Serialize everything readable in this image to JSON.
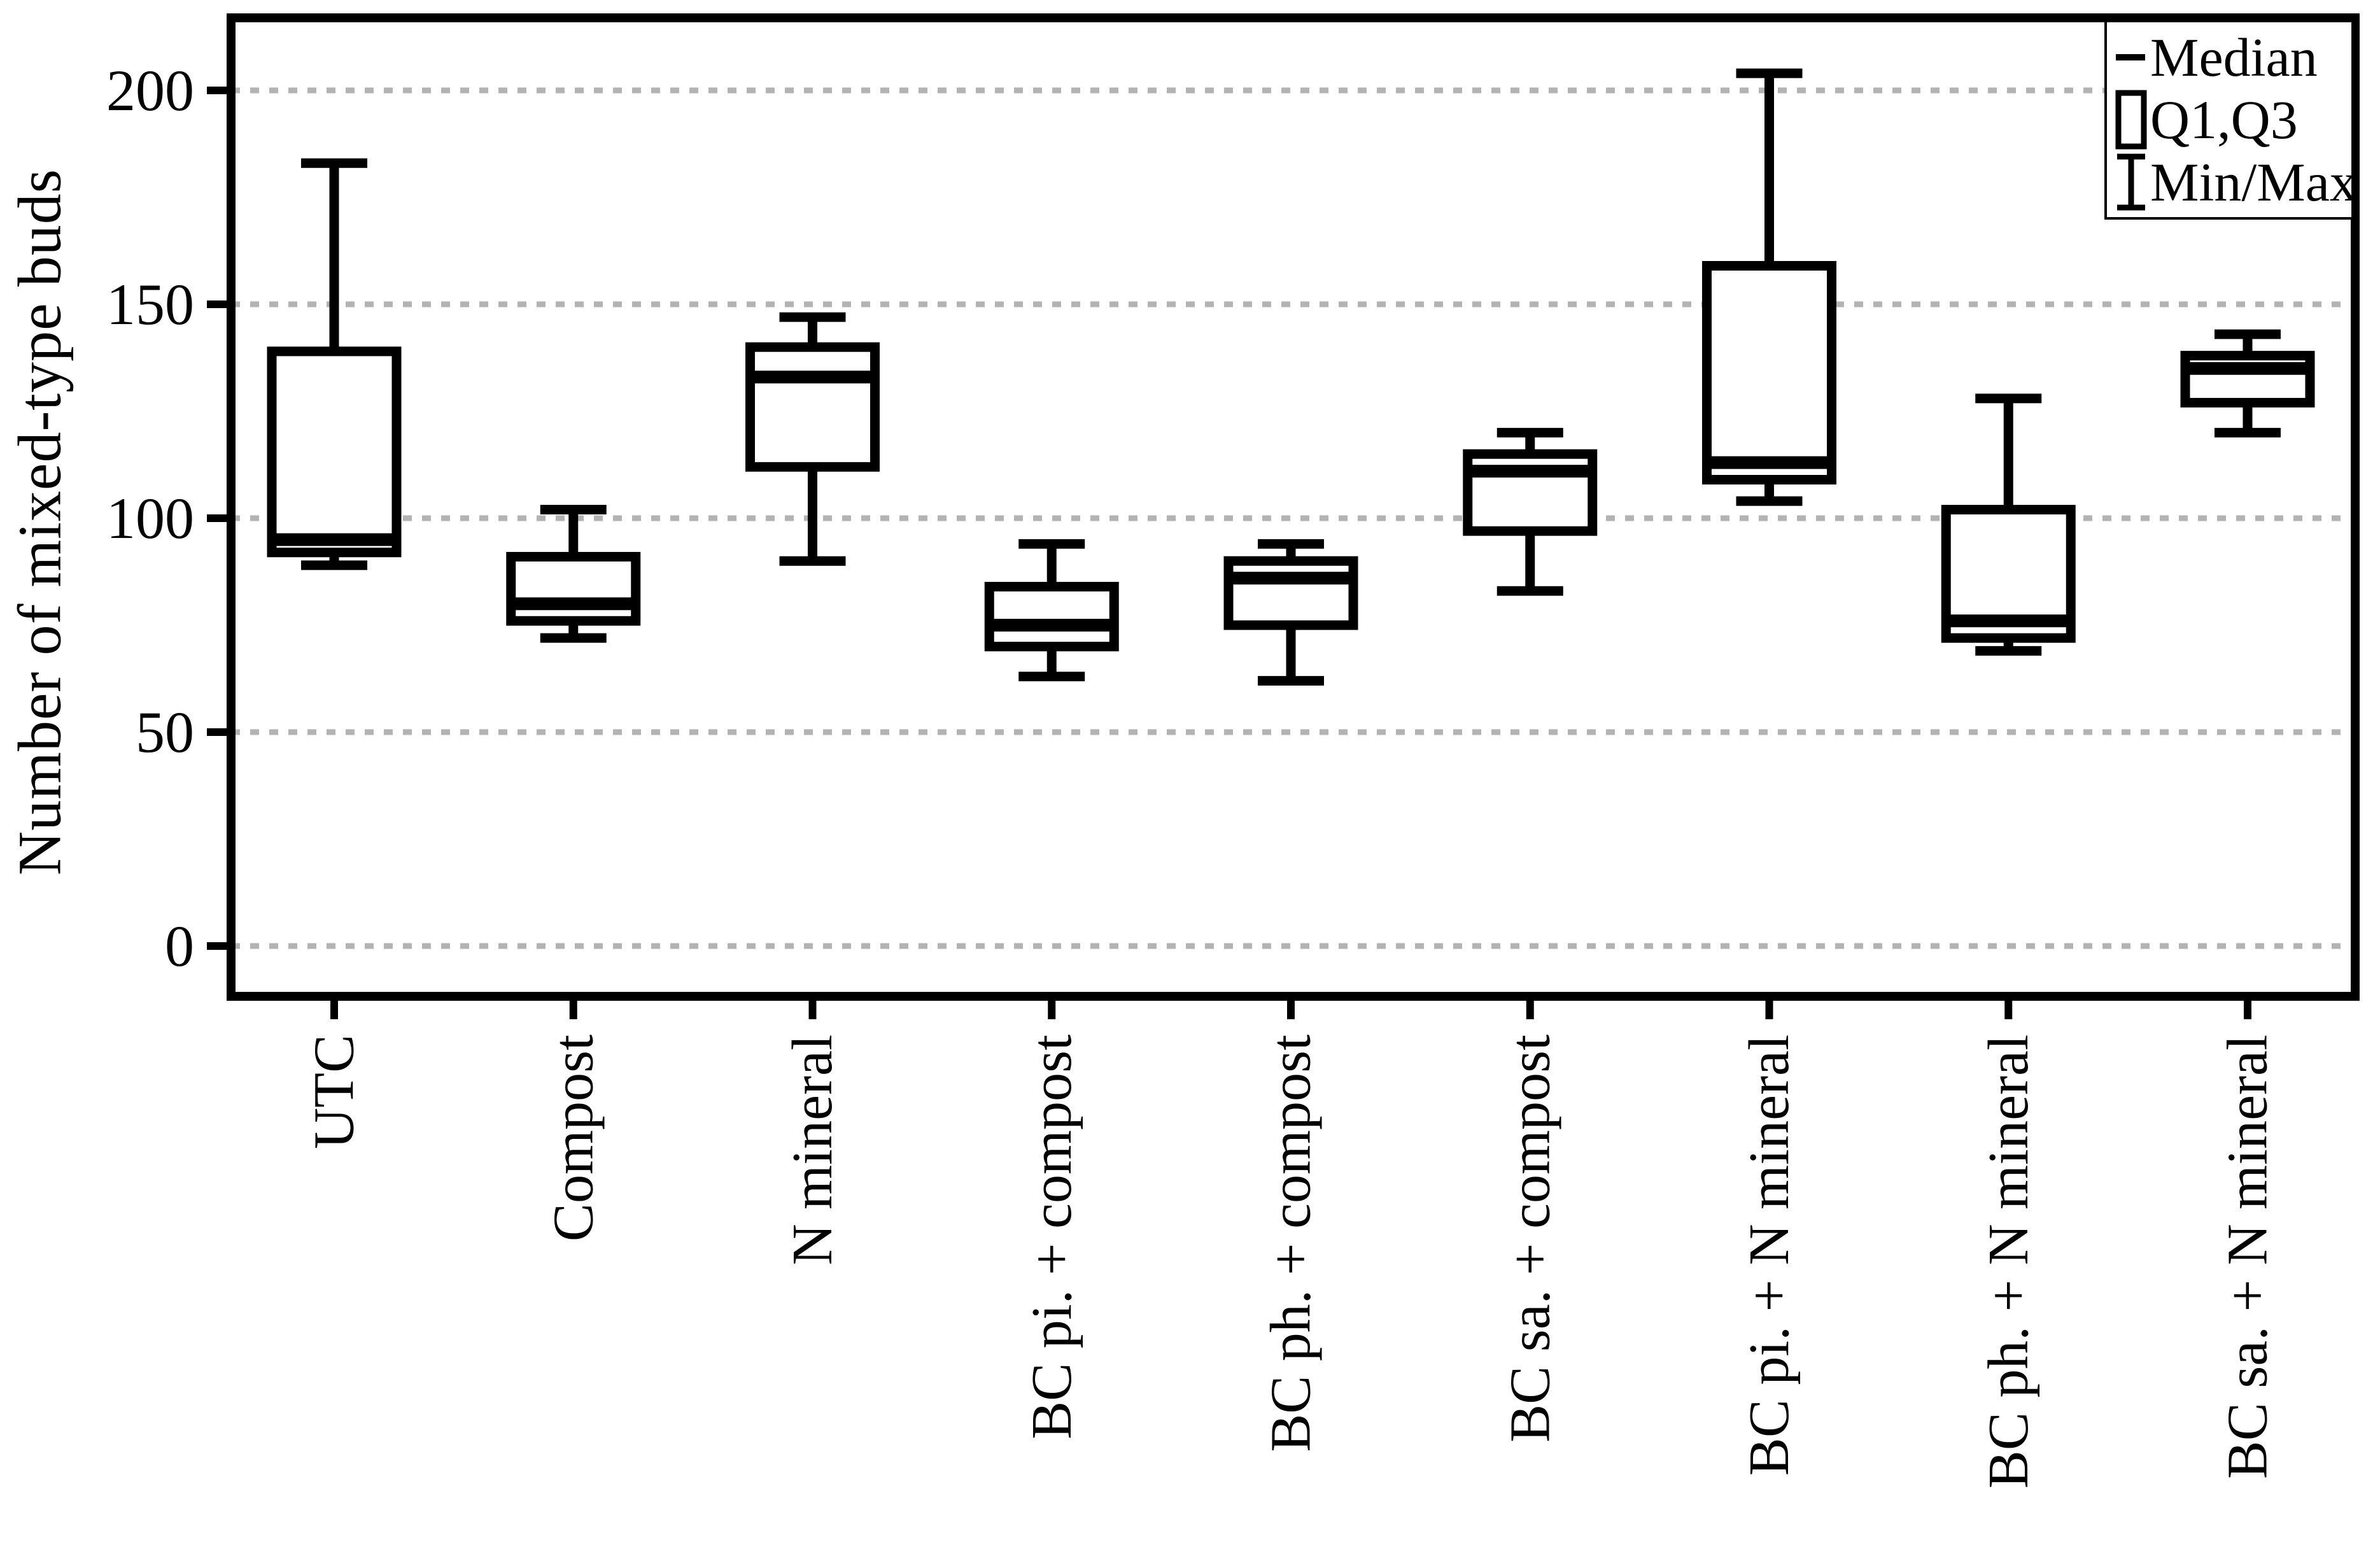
{
  "page": {
    "background": "#ffffff"
  },
  "chart_data": {
    "type": "boxplot",
    "title": "",
    "xlabel": "",
    "ylabel": "Number of mixed-type buds",
    "ylim": [
      -11.5,
      216.5
    ],
    "grid": true,
    "grid_style": "dashed",
    "legend_position": "top-right",
    "y_ticks": [
      0,
      50,
      100,
      150,
      200
    ],
    "y_tick_labels": [
      "0",
      "50",
      "100",
      "150",
      "200"
    ],
    "categories": [
      "UTC",
      "Compost",
      "N mineral",
      "BC pi. + compost",
      "BC ph. + compost",
      "BC sa. + compost",
      "BC pi. + N mineral",
      "BC ph. + N mineral",
      "BC sa. + N mineral"
    ],
    "boxes": [
      {
        "category": "UTC",
        "min": 89,
        "q1": 92,
        "median": 95,
        "q3": 139,
        "max": 183
      },
      {
        "category": "Compost",
        "min": 72,
        "q1": 76,
        "median": 80,
        "q3": 91,
        "max": 102
      },
      {
        "category": "N mineral",
        "min": 90,
        "q1": 112,
        "median": 133,
        "q3": 140,
        "max": 147
      },
      {
        "category": "BC pi. + compost",
        "min": 63,
        "q1": 70,
        "median": 75,
        "q3": 84,
        "max": 94
      },
      {
        "category": "BC ph. + compost",
        "min": 62,
        "q1": 75,
        "median": 86,
        "q3": 90,
        "max": 94
      },
      {
        "category": "BC sa. + compost",
        "min": 83,
        "q1": 97,
        "median": 111,
        "q3": 115,
        "max": 120
      },
      {
        "category": "BC pi. + N mineral",
        "min": 104,
        "q1": 109,
        "median": 113,
        "q3": 159,
        "max": 204
      },
      {
        "category": "BC ph. + N mineral",
        "min": 69,
        "q1": 72,
        "median": 76,
        "q3": 102,
        "max": 128
      },
      {
        "category": "BC sa. + N mineral",
        "min": 120,
        "q1": 127,
        "median": 135,
        "q3": 138,
        "max": 143
      }
    ],
    "legend": {
      "items": [
        {
          "icon": "median-line-icon",
          "label": "Median"
        },
        {
          "icon": "box-icon",
          "label": "Q1,Q3"
        },
        {
          "icon": "whisker-icon",
          "label": "Min/Max"
        }
      ]
    },
    "colors": {
      "stroke": "#000000",
      "grid": "#b3b3b3",
      "background": "#ffffff"
    }
  }
}
